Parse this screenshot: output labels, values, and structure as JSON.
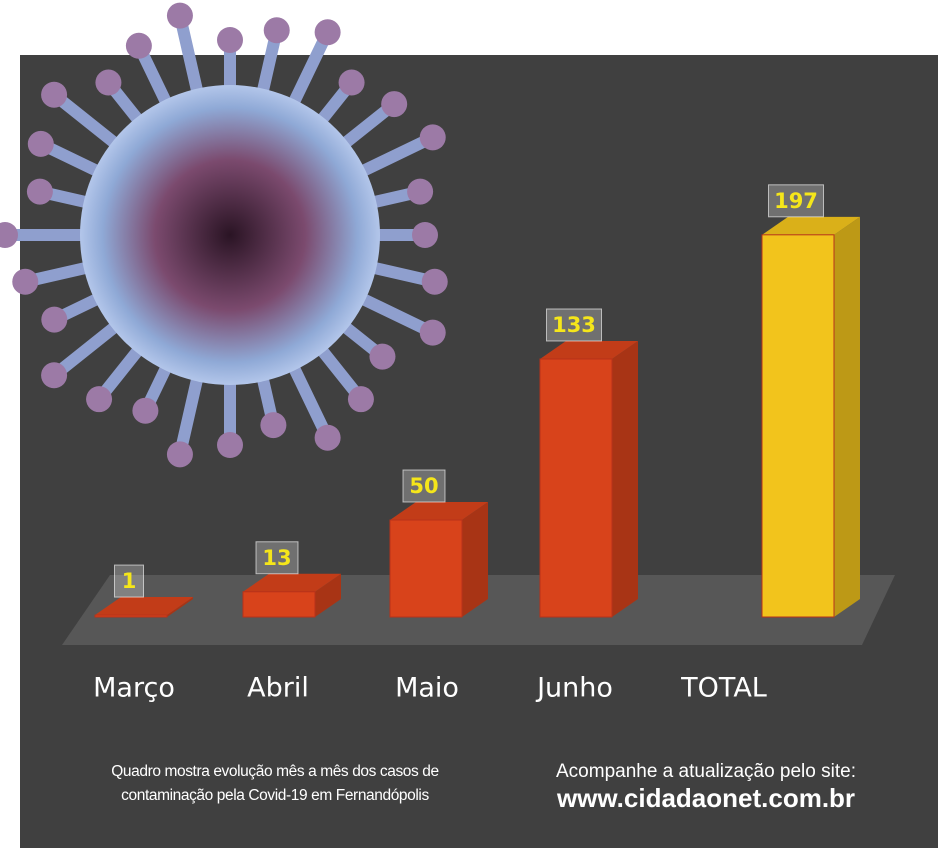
{
  "chart_data": {
    "type": "bar3d",
    "categories": [
      "Março",
      "Abril",
      "Maio",
      "Junho",
      "TOTAL"
    ],
    "values": [
      1,
      13,
      50,
      133,
      197
    ],
    "colors": [
      "#d8431b",
      "#d8431b",
      "#d8431b",
      "#d8431b",
      "#f2c41c"
    ],
    "caption": [
      "Quadro mostra evolução mês a mês dos casos de",
      "contaminação pela Covid-19 em Fernandópolis"
    ],
    "site_prompt": "Acompanhe a atualização pelo site:",
    "site_url": "www.cidadaonet.com.br"
  }
}
